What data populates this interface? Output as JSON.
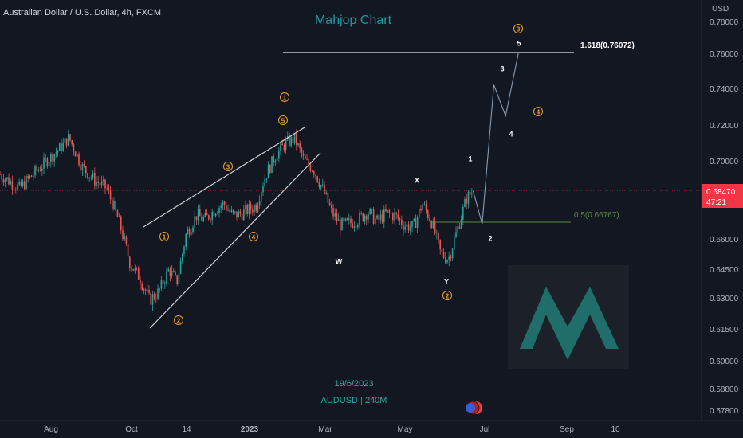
{
  "header": {
    "symbol_title": "Australian Dollar / U.S. Dollar, 4h, FXCM",
    "brand": "Mahjop Chart",
    "currency": "USD"
  },
  "footer": {
    "date": "19/6/2023",
    "pair": "AUDUSD | 240M"
  },
  "price_label": {
    "price": "0.68470",
    "countdown": "47:21"
  },
  "colors": {
    "background": "#131722",
    "candle_up": "#26a69a",
    "candle_down": "#ef5350",
    "wave_orange": "#f0a030",
    "text_white": "#ffffff",
    "brand_teal": "#1e8a8a",
    "price_tag": "#f23645",
    "fib_green": "#5a8a4a"
  },
  "chart_data": {
    "type": "line",
    "title": "",
    "xlabel": "",
    "ylabel": "USD",
    "ylim": [
      0.575,
      0.785
    ],
    "y_ticks": [
      0.78,
      0.76,
      0.74,
      0.72,
      0.7,
      0.66,
      0.645,
      0.63,
      0.615,
      0.6,
      0.588,
      0.578
    ],
    "y_tick_labels": [
      "0.78000",
      "0.76000",
      "0.74000",
      "0.72000",
      "0.70000",
      "0.66000",
      "0.64500",
      "0.63000",
      "0.61500",
      "0.60000",
      "0.58800",
      "0.57800"
    ],
    "x_tick_labels": [
      "Aug",
      "Oct",
      "14",
      "2023",
      "Mar",
      "May",
      "Jul",
      "Sep",
      "10"
    ],
    "price_path": {
      "name": "AUDUSD 4h",
      "x": [
        "2022-06-20",
        "2022-07-05",
        "2022-07-20",
        "2022-08-05",
        "2022-08-12",
        "2022-08-22",
        "2022-09-01",
        "2022-09-10",
        "2022-09-20",
        "2022-09-28",
        "2022-10-05",
        "2022-10-13",
        "2022-10-20",
        "2022-10-28",
        "2022-11-03",
        "2022-11-10",
        "2022-11-18",
        "2022-11-25",
        "2022-12-02",
        "2022-12-09",
        "2022-12-16",
        "2022-12-23",
        "2023-01-03",
        "2023-01-10",
        "2023-01-18",
        "2023-01-26",
        "2023-02-02",
        "2023-02-09",
        "2023-02-16",
        "2023-02-23",
        "2023-03-02",
        "2023-03-09",
        "2023-03-16",
        "2023-03-23",
        "2023-03-30",
        "2023-04-06",
        "2023-04-13",
        "2023-04-20",
        "2023-04-27",
        "2023-05-04",
        "2023-05-11",
        "2023-05-18",
        "2023-05-25",
        "2023-05-31",
        "2023-06-07",
        "2023-06-14",
        "2023-06-19"
      ],
      "y": [
        0.693,
        0.686,
        0.696,
        0.707,
        0.713,
        0.697,
        0.69,
        0.686,
        0.668,
        0.648,
        0.641,
        0.629,
        0.633,
        0.645,
        0.638,
        0.662,
        0.672,
        0.67,
        0.675,
        0.678,
        0.672,
        0.673,
        0.677,
        0.692,
        0.703,
        0.71,
        0.712,
        0.7,
        0.696,
        0.686,
        0.674,
        0.667,
        0.668,
        0.67,
        0.674,
        0.669,
        0.673,
        0.672,
        0.667,
        0.666,
        0.678,
        0.669,
        0.653,
        0.65,
        0.665,
        0.681,
        0.6847
      ]
    },
    "projection": {
      "x": [
        "2023-06-19",
        "2023-06-26",
        "2023-07-05",
        "2023-07-14",
        "2023-07-24"
      ],
      "y": [
        0.6847,
        0.6677,
        0.742,
        0.725,
        0.76072
      ]
    },
    "levels": [
      {
        "label": "1.618(0.76072)",
        "value": 0.76072
      },
      {
        "label": "0.5(0.66767)",
        "value": 0.66767
      },
      {
        "label": "",
        "value": 0.6847
      }
    ],
    "wave_labels": [
      {
        "text": "1",
        "circled": true,
        "color": "orange"
      },
      {
        "text": "5",
        "circled": true,
        "color": "orange"
      },
      {
        "text": "3",
        "circled": true,
        "color": "orange"
      },
      {
        "text": "1",
        "circled": true,
        "color": "orange"
      },
      {
        "text": "4",
        "circled": true,
        "color": "orange"
      },
      {
        "text": "2",
        "circled": true,
        "color": "orange"
      },
      {
        "text": "W",
        "circled": false,
        "color": "white"
      },
      {
        "text": "X",
        "circled": false,
        "color": "white"
      },
      {
        "text": "Y",
        "circled": false,
        "color": "white"
      },
      {
        "text": "2",
        "circled": true,
        "color": "orange"
      },
      {
        "text": "1",
        "circled": false,
        "color": "white"
      },
      {
        "text": "2",
        "circled": false,
        "color": "white"
      },
      {
        "text": "3",
        "circled": false,
        "color": "white"
      },
      {
        "text": "4",
        "circled": false,
        "color": "white"
      },
      {
        "text": "5",
        "circled": false,
        "color": "white"
      },
      {
        "text": "3",
        "circled": true,
        "color": "orange"
      },
      {
        "text": "4",
        "circled": true,
        "color": "orange"
      }
    ]
  }
}
